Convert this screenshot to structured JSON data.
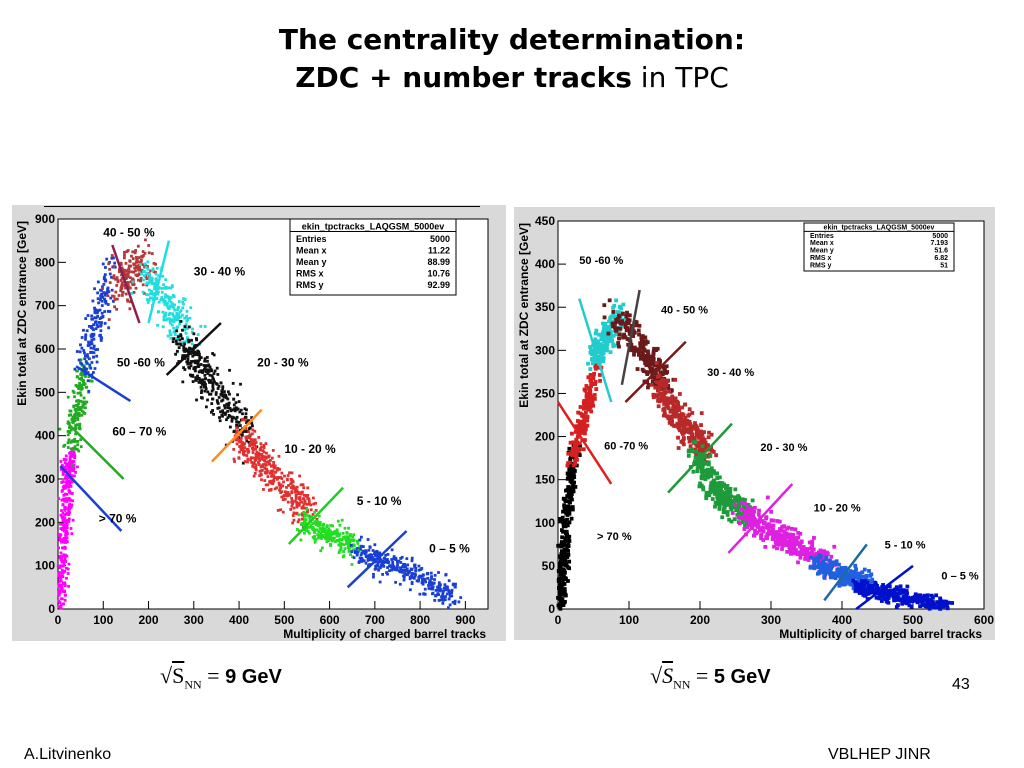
{
  "slide": {
    "title_line1": "The centrality determination:",
    "title_line2_bold": "ZDC  + number tracks",
    "title_line2_rest": " in TPC",
    "page_number": "43",
    "footer_left": "A.Litvinenko",
    "footer_right": "VBLHEP JINR"
  },
  "energies": [
    {
      "label": "S",
      "sub": "NN",
      "eq": "=",
      "value": "9 GeV"
    },
    {
      "label": "S",
      "sub": "NN",
      "eq": "=",
      "value": "5 GeV"
    }
  ],
  "chart_data": [
    {
      "type": "scatter",
      "xlabel": "Multiplicity of charged barrel tracks",
      "ylabel": "Ekin total at ZDC entrance [GeV]",
      "xlim": [
        0,
        950
      ],
      "ylim": [
        0,
        900
      ],
      "xticks": [
        0,
        100,
        200,
        300,
        400,
        500,
        600,
        700,
        800,
        900
      ],
      "yticks": [
        0,
        100,
        200,
        300,
        400,
        500,
        600,
        700,
        800,
        900
      ],
      "stats": {
        "name": "ekin_tpctracks_LAQGSM_5000ev",
        "rows": [
          {
            "k": "Entries",
            "v": "5000"
          },
          {
            "k": "Mean x",
            "v": "11.22"
          },
          {
            "k": "Mean y",
            "v": "88.99"
          },
          {
            "k": "RMS x",
            "v": "10.76"
          },
          {
            "k": "RMS y",
            "v": "92.99"
          }
        ]
      },
      "classes": [
        {
          "label": "> 70 %",
          "color": "#ff00ff",
          "path": [
            [
              5,
              10
            ],
            [
              10,
              100
            ],
            [
              15,
              200
            ],
            [
              22,
              300
            ],
            [
              30,
              360
            ]
          ],
          "spread": 14,
          "n": 320
        },
        {
          "label": "60 – 70 %",
          "color": "#22aa22",
          "path": [
            [
              30,
              360
            ],
            [
              45,
              460
            ],
            [
              60,
              560
            ]
          ],
          "spread": 18,
          "n": 160
        },
        {
          "label": "50 -60 %",
          "color": "#1a3fd4",
          "path": [
            [
              60,
              540
            ],
            [
              85,
              660
            ],
            [
              120,
              790
            ]
          ],
          "spread": 22,
          "n": 170
        },
        {
          "label": "40 - 50 %",
          "color": "#b33a3a",
          "path": [
            [
              130,
              740
            ],
            [
              160,
              780
            ],
            [
              190,
              790
            ]
          ],
          "spread": 30,
          "n": 170
        },
        {
          "label": "30 - 40 %",
          "color": "#22dddd",
          "path": [
            [
              190,
              770
            ],
            [
              240,
              700
            ],
            [
              290,
              620
            ]
          ],
          "spread": 28,
          "n": 220
        },
        {
          "label": "20 - 30 %",
          "color": "#111111",
          "path": [
            [
              270,
              620
            ],
            [
              340,
              520
            ],
            [
              420,
              400
            ]
          ],
          "spread": 28,
          "n": 320
        },
        {
          "label": "10 - 20 %",
          "color": "#e03030",
          "path": [
            [
              400,
              400
            ],
            [
              480,
              300
            ],
            [
              560,
              220
            ]
          ],
          "spread": 26,
          "n": 360
        },
        {
          "label": "5 - 10 %",
          "color": "#22dd22",
          "path": [
            [
              540,
              200
            ],
            [
              600,
              170
            ],
            [
              660,
              140
            ]
          ],
          "spread": 18,
          "n": 220
        },
        {
          "label": "0 – 5 %",
          "color": "#1a3fd4",
          "path": [
            [
              660,
              130
            ],
            [
              760,
              90
            ],
            [
              880,
              30
            ]
          ],
          "spread": 18,
          "n": 320
        }
      ],
      "cut_lines": [
        {
          "color": "#1a3fd4",
          "from": [
            5,
            330
          ],
          "to": [
            140,
            180
          ]
        },
        {
          "color": "#22aa22",
          "from": [
            20,
            430
          ],
          "to": [
            145,
            300
          ]
        },
        {
          "color": "#1a3fd4",
          "from": [
            40,
            560
          ],
          "to": [
            160,
            480
          ]
        },
        {
          "color": "#8b2050",
          "from": [
            120,
            840
          ],
          "to": [
            180,
            660
          ]
        },
        {
          "color": "#22dddd",
          "from": [
            200,
            660
          ],
          "to": [
            245,
            850
          ]
        },
        {
          "color": "#111111",
          "from": [
            240,
            540
          ],
          "to": [
            360,
            660
          ]
        },
        {
          "color": "#ff8c1a",
          "from": [
            340,
            340
          ],
          "to": [
            450,
            460
          ]
        },
        {
          "color": "#22cc22",
          "from": [
            510,
            150
          ],
          "to": [
            630,
            280
          ]
        },
        {
          "color": "#1a3fd4",
          "from": [
            640,
            50
          ],
          "to": [
            770,
            180
          ]
        }
      ],
      "labels": [
        {
          "text": "40 - 50 %",
          "at": [
            100,
            860
          ]
        },
        {
          "text": "30 - 40 %",
          "at": [
            300,
            770
          ]
        },
        {
          "text": "50 -60 %",
          "at": [
            130,
            560
          ]
        },
        {
          "text": "20 - 30 %",
          "at": [
            440,
            560
          ]
        },
        {
          "text": "60 – 70 %",
          "at": [
            120,
            400
          ]
        },
        {
          "text": "10 - 20 %",
          "at": [
            500,
            360
          ]
        },
        {
          "text": "5 - 10 %",
          "at": [
            660,
            240
          ]
        },
        {
          "text": "> 70 %",
          "at": [
            90,
            200
          ]
        },
        {
          "text": "0 – 5 %",
          "at": [
            820,
            130
          ]
        }
      ]
    },
    {
      "type": "scatter",
      "xlabel": "Multiplicity of charged barrel tracks",
      "ylabel": "Ekin total at ZDC entrance [GeV]",
      "xlim": [
        0,
        600
      ],
      "ylim": [
        0,
        450
      ],
      "xticks": [
        0,
        100,
        200,
        300,
        400,
        500,
        600
      ],
      "yticks": [
        0,
        50,
        100,
        150,
        200,
        250,
        300,
        350,
        400,
        450
      ],
      "stats": {
        "name": "ekin_tpctracks_LAQGSM_5000ev",
        "rows": [
          {
            "k": "Entries",
            "v": "5000"
          },
          {
            "k": "Mean x",
            "v": "7.193"
          },
          {
            "k": "Mean y",
            "v": "51.6"
          },
          {
            "k": "RMS x",
            "v": "6.82"
          },
          {
            "k": "RMS y",
            "v": "51"
          }
        ]
      },
      "classes": [
        {
          "label": "> 70 %",
          "color": "#000000",
          "path": [
            [
              3,
              5
            ],
            [
              8,
              60
            ],
            [
              15,
              130
            ],
            [
              25,
              190
            ]
          ],
          "spread": 7,
          "n": 300
        },
        {
          "label": "60 -70 %",
          "color": "#d42020",
          "path": [
            [
              20,
              170
            ],
            [
              40,
              230
            ],
            [
              55,
              280
            ]
          ],
          "spread": 9,
          "n": 160
        },
        {
          "label": "50 -60 %",
          "color": "#22cccc",
          "path": [
            [
              50,
              290
            ],
            [
              70,
              320
            ],
            [
              90,
              340
            ]
          ],
          "spread": 12,
          "n": 180
        },
        {
          "label": "40 - 50 %",
          "color": "#6a1a1a",
          "path": [
            [
              80,
              340
            ],
            [
              120,
              300
            ],
            [
              150,
              260
            ]
          ],
          "spread": 14,
          "n": 220
        },
        {
          "label": "30 - 40 %",
          "color": "#b82a2a",
          "path": [
            [
              140,
              260
            ],
            [
              180,
              210
            ],
            [
              210,
              180
            ]
          ],
          "spread": 14,
          "n": 300
        },
        {
          "label": "20 - 30 %",
          "color": "#1e9a3a",
          "path": [
            [
              190,
              180
            ],
            [
              230,
              130
            ],
            [
              270,
              110
            ]
          ],
          "spread": 12,
          "n": 300
        },
        {
          "label": "10 - 20 %",
          "color": "#e020e0",
          "path": [
            [
              260,
              110
            ],
            [
              320,
              80
            ],
            [
              380,
              55
            ]
          ],
          "spread": 11,
          "n": 300
        },
        {
          "label": "5 - 10 %",
          "color": "#2060e0",
          "path": [
            [
              360,
              55
            ],
            [
              400,
              40
            ],
            [
              440,
              30
            ]
          ],
          "spread": 8,
          "n": 220
        },
        {
          "label": "0 – 5 %",
          "color": "#0010cc",
          "path": [
            [
              420,
              25
            ],
            [
              480,
              15
            ],
            [
              550,
              5
            ]
          ],
          "spread": 7,
          "n": 260
        }
      ],
      "cut_lines": [
        {
          "color": "#e02020",
          "from": [
            0,
            240
          ],
          "to": [
            75,
            145
          ]
        },
        {
          "color": "#22cccc",
          "from": [
            30,
            360
          ],
          "to": [
            75,
            240
          ]
        },
        {
          "color": "#444444",
          "from": [
            90,
            260
          ],
          "to": [
            115,
            370
          ]
        },
        {
          "color": "#7a1a1a",
          "from": [
            95,
            240
          ],
          "to": [
            180,
            310
          ]
        },
        {
          "color": "#1e9a3a",
          "from": [
            155,
            135
          ],
          "to": [
            245,
            215
          ]
        },
        {
          "color": "#e020e0",
          "from": [
            240,
            65
          ],
          "to": [
            330,
            145
          ]
        },
        {
          "color": "#1e6aa0",
          "from": [
            375,
            10
          ],
          "to": [
            435,
            75
          ]
        },
        {
          "color": "#0010cc",
          "from": [
            420,
            0
          ],
          "to": [
            500,
            50
          ]
        }
      ],
      "labels": [
        {
          "text": "50 -60 %",
          "at": [
            30,
            400
          ]
        },
        {
          "text": "40 - 50 %",
          "at": [
            145,
            343
          ]
        },
        {
          "text": "30 - 40 %",
          "at": [
            210,
            270
          ]
        },
        {
          "text": "60 -70 %",
          "at": [
            65,
            185
          ]
        },
        {
          "text": "20 - 30 %",
          "at": [
            285,
            183
          ]
        },
        {
          "text": "10 - 20 %",
          "at": [
            360,
            113
          ]
        },
        {
          "text": "> 70 %",
          "at": [
            55,
            80
          ]
        },
        {
          "text": "5 - 10 %",
          "at": [
            460,
            70
          ]
        },
        {
          "text": "0 – 5 %",
          "at": [
            540,
            34
          ]
        }
      ]
    }
  ]
}
